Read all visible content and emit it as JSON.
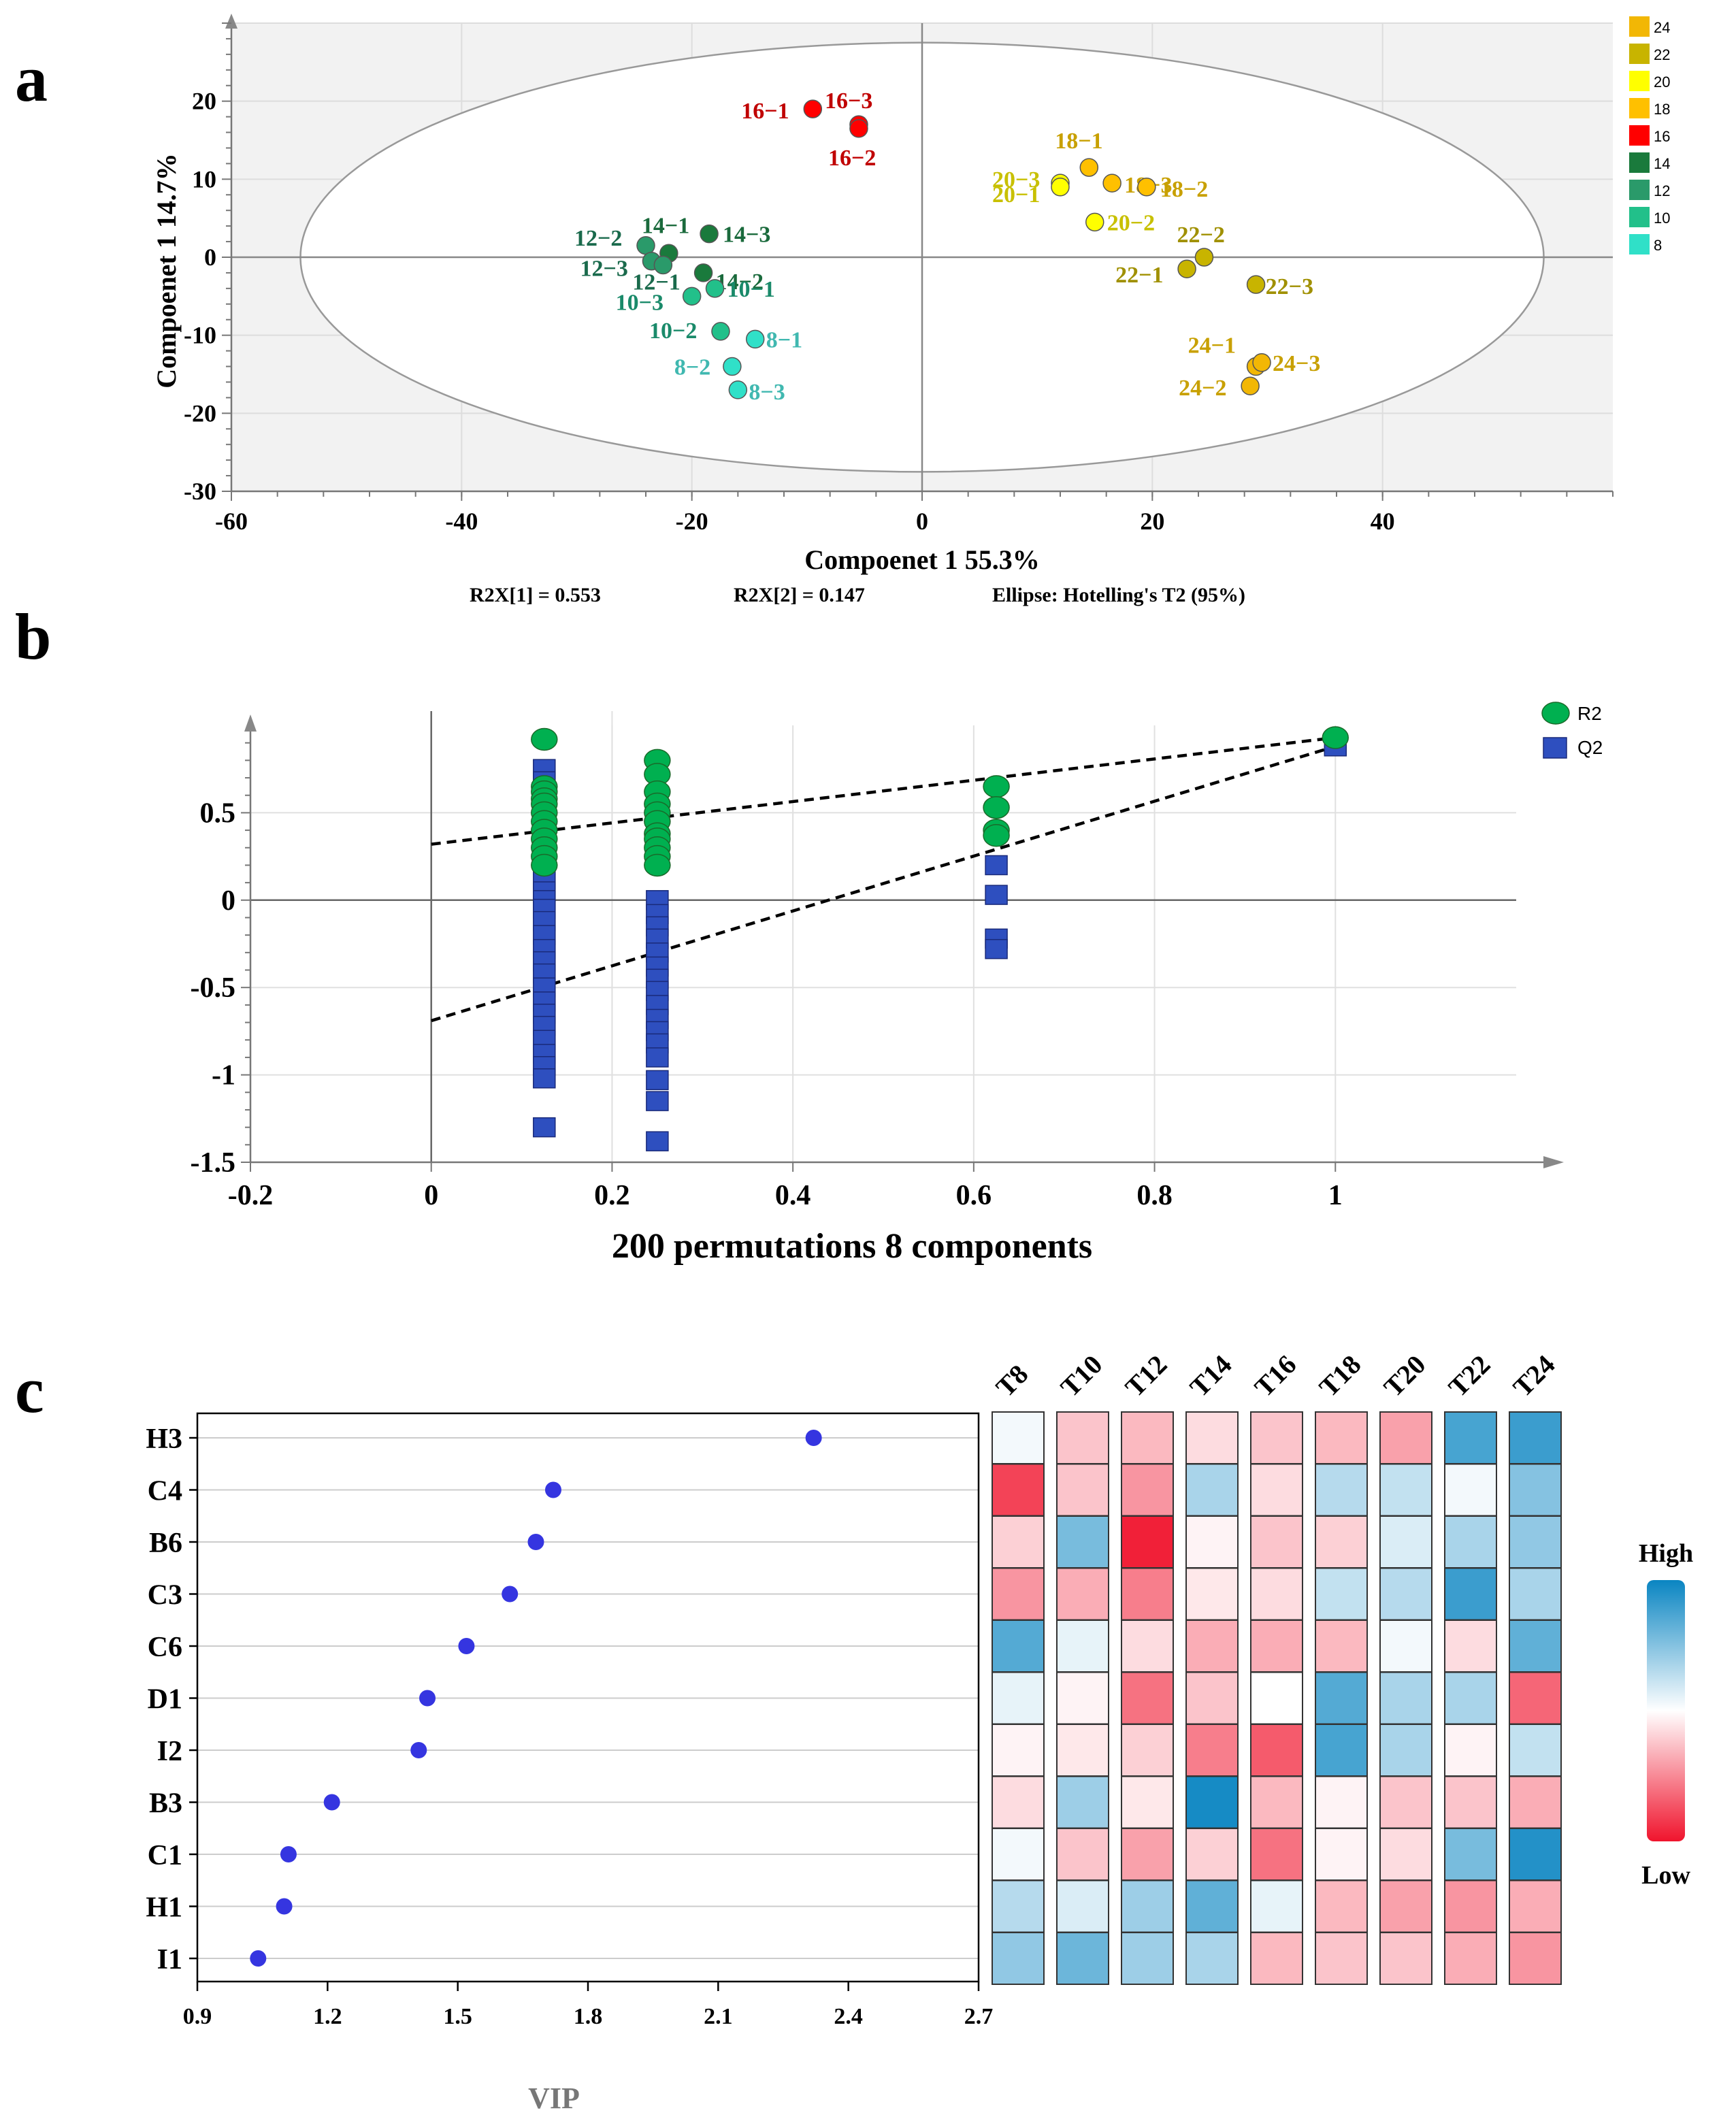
{
  "panels": {
    "a": "a",
    "b": "b",
    "c": "c"
  },
  "chart_data": [
    {
      "type": "scatter",
      "id": "pca",
      "xlabel": "Compoenet 1 55.3%",
      "ylabel": "Compoenet 1 14.7%",
      "xlim": [
        -60,
        60
      ],
      "ylim": [
        -30,
        30
      ],
      "xticks": [
        -60,
        -40,
        -20,
        0,
        20,
        40
      ],
      "yticks": [
        -30,
        -20,
        -10,
        0,
        10,
        20
      ],
      "footnotes": [
        "R2X[1] = 0.553",
        "R2X[2] = 0.147",
        "Ellipse: Hotelling's T2 (95%)"
      ],
      "ellipse": {
        "cx": 0,
        "cy": 0,
        "rx": 54,
        "ry": 27.5
      },
      "legend": [
        {
          "label": "24",
          "color": "#f2b705"
        },
        {
          "label": "22",
          "color": "#c8b400"
        },
        {
          "label": "20",
          "color": "#ffff00"
        },
        {
          "label": "18",
          "color": "#ffc000"
        },
        {
          "label": "16",
          "color": "#ff0000"
        },
        {
          "label": "14",
          "color": "#1a7a3c"
        },
        {
          "label": "12",
          "color": "#2a9a6a"
        },
        {
          "label": "10",
          "color": "#22c08a"
        },
        {
          "label": "8",
          "color": "#30e0c8"
        }
      ],
      "points": [
        {
          "label": "16−1",
          "x": -9.5,
          "y": 19,
          "color": "#ff0000",
          "text": "#c00000"
        },
        {
          "label": "16−3",
          "x": -5.5,
          "y": 17,
          "color": "#ff0000",
          "text": "#c00000"
        },
        {
          "label": "16−2",
          "x": -5.5,
          "y": 16.5,
          "color": "#ff0000",
          "text": "#c00000"
        },
        {
          "label": "14−1",
          "x": -22,
          "y": 0.5,
          "color": "#1a7a3c",
          "text": "#1a6a3c"
        },
        {
          "label": "14−3",
          "x": -18.5,
          "y": 3,
          "color": "#1a7a3c",
          "text": "#1a6a3c"
        },
        {
          "label": "14−2",
          "x": -19,
          "y": -2,
          "color": "#1a7a3c",
          "text": "#1a6a3c"
        },
        {
          "label": "12−2",
          "x": -24,
          "y": 1.5,
          "color": "#2a9a6a",
          "text": "#1a6a4c"
        },
        {
          "label": "12−3",
          "x": -23.5,
          "y": -0.5,
          "color": "#2a9a6a",
          "text": "#1a6a4c"
        },
        {
          "label": "12−1",
          "x": -22.5,
          "y": -1,
          "color": "#2a9a6a",
          "text": "#1a6a4c"
        },
        {
          "label": "10−3",
          "x": -20,
          "y": -5,
          "color": "#22c08a",
          "text": "#1a8a6a"
        },
        {
          "label": "10−1",
          "x": -18,
          "y": -4,
          "color": "#22c08a",
          "text": "#1a8a6a"
        },
        {
          "label": "10−2",
          "x": -17.5,
          "y": -9.5,
          "color": "#22c08a",
          "text": "#1a8a6a"
        },
        {
          "label": "8−1",
          "x": -14.5,
          "y": -10.5,
          "color": "#30e0c8",
          "text": "#40b8b0"
        },
        {
          "label": "8−2",
          "x": -16.5,
          "y": -14,
          "color": "#30e0c8",
          "text": "#40b8b0"
        },
        {
          "label": "8−3",
          "x": -16,
          "y": -17,
          "color": "#30e0c8",
          "text": "#40b8b0"
        },
        {
          "label": "18−1",
          "x": 14.5,
          "y": 11.5,
          "color": "#ffc000",
          "text": "#c8a000"
        },
        {
          "label": "18−3",
          "x": 16.5,
          "y": 9.5,
          "color": "#ffc000",
          "text": "#c8a000"
        },
        {
          "label": "18−2",
          "x": 19.5,
          "y": 9,
          "color": "#ffc000",
          "text": "#c8a000"
        },
        {
          "label": "20−3",
          "x": 12,
          "y": 9.5,
          "color": "#ffff00",
          "text": "#c8c000"
        },
        {
          "label": "20−1",
          "x": 12,
          "y": 9,
          "color": "#ffff00",
          "text": "#c8c000"
        },
        {
          "label": "20−2",
          "x": 15,
          "y": 4.5,
          "color": "#ffff00",
          "text": "#c8c000"
        },
        {
          "label": "22−2",
          "x": 24.5,
          "y": 0,
          "color": "#c8b400",
          "text": "#a09000"
        },
        {
          "label": "22−1",
          "x": 23,
          "y": -1.5,
          "color": "#c8b400",
          "text": "#a09000"
        },
        {
          "label": "22−3",
          "x": 29,
          "y": -3.5,
          "color": "#c8b400",
          "text": "#a09000"
        },
        {
          "label": "24−1",
          "x": 29,
          "y": -14,
          "color": "#f2b705",
          "text": "#c8a000"
        },
        {
          "label": "24−3",
          "x": 29.5,
          "y": -13.5,
          "color": "#f2b705",
          "text": "#c8a000"
        },
        {
          "label": "24−2",
          "x": 28.5,
          "y": -16.5,
          "color": "#f2b705",
          "text": "#c8a000"
        }
      ]
    },
    {
      "type": "scatter",
      "id": "permutation",
      "xlabel": "200 permutations 8 components",
      "xlim": [
        -0.2,
        1.2
      ],
      "ylim": [
        -1.5,
        1.0
      ],
      "xticks": [
        -0.2,
        0,
        0.2,
        0.4,
        0.6,
        0.8,
        1
      ],
      "yticks": [
        -1.5,
        -1,
        -0.5,
        0,
        0.5
      ],
      "xtick_labels": [
        "-0.2",
        "0",
        "0.2",
        "0.4",
        "0.6",
        "0.8",
        "1"
      ],
      "ytick_labels": [
        "-1.5",
        "-1",
        "-0.5",
        "0",
        "0.5"
      ],
      "series": [
        {
          "name": "R2",
          "color": "#00b050",
          "shape": "circle",
          "points": [
            [
              0.125,
              0.92
            ],
            [
              0.125,
              0.65
            ],
            [
              0.125,
              0.62
            ],
            [
              0.125,
              0.58
            ],
            [
              0.125,
              0.55
            ],
            [
              0.125,
              0.5
            ],
            [
              0.125,
              0.45
            ],
            [
              0.125,
              0.4
            ],
            [
              0.125,
              0.35
            ],
            [
              0.125,
              0.3
            ],
            [
              0.125,
              0.25
            ],
            [
              0.125,
              0.2
            ],
            [
              0.25,
              0.8
            ],
            [
              0.25,
              0.72
            ],
            [
              0.25,
              0.62
            ],
            [
              0.25,
              0.55
            ],
            [
              0.25,
              0.5
            ],
            [
              0.25,
              0.45
            ],
            [
              0.25,
              0.38
            ],
            [
              0.25,
              0.35
            ],
            [
              0.25,
              0.3
            ],
            [
              0.25,
              0.25
            ],
            [
              0.25,
              0.2
            ],
            [
              0.625,
              0.65
            ],
            [
              0.625,
              0.53
            ],
            [
              0.625,
              0.4
            ],
            [
              0.625,
              0.37
            ],
            [
              1,
              0.93
            ]
          ]
        },
        {
          "name": "Q2",
          "color": "#2e4fbf",
          "shape": "square",
          "points": [
            [
              0.125,
              0.75
            ],
            [
              0.125,
              0.68
            ],
            [
              0.125,
              0.62
            ],
            [
              0.125,
              0.55
            ],
            [
              0.125,
              0.48
            ],
            [
              0.125,
              0.42
            ],
            [
              0.125,
              0.35
            ],
            [
              0.125,
              0.28
            ],
            [
              0.125,
              0.2
            ],
            [
              0.125,
              0.12
            ],
            [
              0.125,
              0.05
            ],
            [
              0.125,
              0
            ],
            [
              0.125,
              -0.05
            ],
            [
              0.125,
              -0.12
            ],
            [
              0.125,
              -0.2
            ],
            [
              0.125,
              -0.28
            ],
            [
              0.125,
              -0.35
            ],
            [
              0.125,
              -0.42
            ],
            [
              0.125,
              -0.5
            ],
            [
              0.125,
              -0.58
            ],
            [
              0.125,
              -0.65
            ],
            [
              0.125,
              -0.72
            ],
            [
              0.125,
              -0.8
            ],
            [
              0.125,
              -0.88
            ],
            [
              0.125,
              -0.95
            ],
            [
              0.125,
              -1.02
            ],
            [
              0.125,
              -1.3
            ],
            [
              0.25,
              0
            ],
            [
              0.25,
              -0.08
            ],
            [
              0.25,
              -0.15
            ],
            [
              0.25,
              -0.22
            ],
            [
              0.25,
              -0.3
            ],
            [
              0.25,
              -0.38
            ],
            [
              0.25,
              -0.45
            ],
            [
              0.25,
              -0.52
            ],
            [
              0.25,
              -0.6
            ],
            [
              0.25,
              -0.68
            ],
            [
              0.25,
              -0.75
            ],
            [
              0.25,
              -0.82
            ],
            [
              0.25,
              -0.9
            ],
            [
              0.25,
              -1.03
            ],
            [
              0.25,
              -1.15
            ],
            [
              0.25,
              -1.38
            ],
            [
              0.625,
              0.2
            ],
            [
              0.625,
              0.03
            ],
            [
              0.625,
              -0.22
            ],
            [
              0.625,
              -0.28
            ],
            [
              1,
              0.88
            ]
          ]
        }
      ],
      "regression_lines": [
        {
          "name": "R2",
          "from": [
            0,
            0.32
          ],
          "to": [
            1,
            0.93
          ]
        },
        {
          "name": "Q2",
          "from": [
            0,
            -0.69
          ],
          "to": [
            1,
            0.88
          ]
        }
      ],
      "legend": [
        {
          "label": "R2",
          "color": "#00b050"
        },
        {
          "label": "Q2",
          "color": "#2e4fbf"
        }
      ]
    },
    {
      "type": "scatter",
      "id": "vip",
      "xlabel": "VIP",
      "xlim": [
        0.9,
        2.7
      ],
      "xticks": [
        0.9,
        1.2,
        1.5,
        1.8,
        2.1,
        2.4,
        2.7
      ],
      "xtick_labels": [
        "0.9",
        "1.2",
        "1.5",
        "1.8",
        "2.1",
        "2.4",
        "2.7"
      ],
      "categories": [
        "H3",
        "C4",
        "B6",
        "C3",
        "C6",
        "D1",
        "I2",
        "B3",
        "C1",
        "H1",
        "I1"
      ],
      "values": [
        2.32,
        1.72,
        1.68,
        1.62,
        1.52,
        1.43,
        1.41,
        1.21,
        1.11,
        1.1,
        1.04
      ],
      "color": "#3535e0"
    },
    {
      "type": "heatmap",
      "id": "vip-heatmap",
      "columns": [
        "T8",
        "T10",
        "T12",
        "T14",
        "T16",
        "T18",
        "T20",
        "T22",
        "T24"
      ],
      "rows": [
        "H3",
        "C4",
        "B6",
        "C3",
        "C6",
        "D1",
        "I2",
        "B3",
        "C1",
        "H1",
        "I1"
      ],
      "values": [
        [
          0.05,
          -0.25,
          -0.3,
          -0.15,
          -0.25,
          -0.3,
          -0.4,
          0.75,
          0.8
        ],
        [
          -0.8,
          -0.25,
          -0.45,
          0.35,
          -0.15,
          0.3,
          0.25,
          0.05,
          0.5
        ],
        [
          -0.2,
          0.55,
          -0.95,
          -0.05,
          -0.25,
          -0.2,
          0.15,
          0.35,
          0.45
        ],
        [
          -0.45,
          -0.35,
          -0.55,
          -0.1,
          -0.15,
          0.25,
          0.3,
          0.8,
          0.35
        ],
        [
          0.7,
          0.1,
          -0.15,
          -0.35,
          -0.35,
          -0.3,
          0.05,
          -0.15,
          0.65
        ],
        [
          0.1,
          -0.05,
          -0.6,
          -0.25,
          0,
          0.7,
          0.35,
          0.35,
          -0.65
        ],
        [
          -0.05,
          -0.1,
          -0.2,
          -0.55,
          -0.7,
          0.75,
          0.35,
          -0.05,
          0.25
        ],
        [
          -0.15,
          0.4,
          -0.1,
          0.95,
          -0.3,
          -0.05,
          -0.25,
          -0.25,
          -0.35
        ],
        [
          0.05,
          -0.25,
          -0.4,
          -0.2,
          -0.6,
          -0.05,
          -0.15,
          0.55,
          0.9
        ],
        [
          0.3,
          0.15,
          0.4,
          0.65,
          0.1,
          -0.3,
          -0.4,
          -0.45,
          -0.35
        ],
        [
          0.45,
          0.6,
          0.4,
          0.35,
          -0.3,
          -0.25,
          -0.25,
          -0.35,
          -0.45
        ]
      ],
      "scale_high": "High",
      "scale_low": "Low",
      "high_color": "#0a85c2",
      "low_color": "#f0142d"
    }
  ]
}
